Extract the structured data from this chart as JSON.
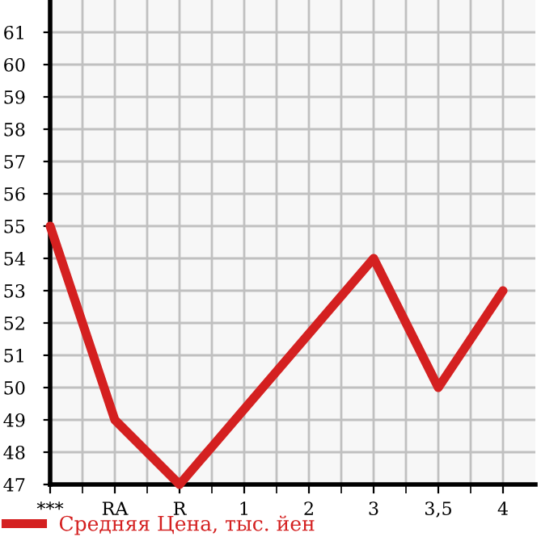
{
  "chart_data": {
    "type": "line",
    "categories": [
      "***",
      "RA",
      "R",
      "1",
      "2",
      "3",
      "3,5",
      "4"
    ],
    "series": [
      {
        "name": "Средняя Цена, тыс. йен",
        "color": "#d42020",
        "values": [
          55,
          49,
          47,
          null,
          null,
          54,
          50,
          53
        ]
      }
    ],
    "ylim": [
      47,
      62
    ],
    "yticks": [
      47,
      48,
      49,
      50,
      51,
      52,
      53,
      54,
      55,
      56,
      57,
      58,
      59,
      60,
      61
    ],
    "grid": true,
    "legend": "bottom left",
    "marker": "none",
    "line_style": "solid"
  }
}
